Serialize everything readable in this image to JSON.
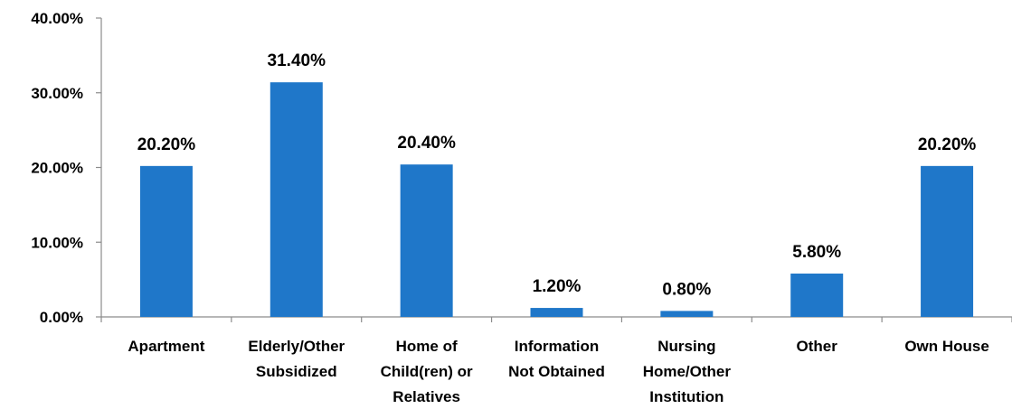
{
  "chart_data": {
    "type": "bar",
    "categories": [
      [
        "Apartment"
      ],
      [
        "Elderly/Other",
        "Subsidized"
      ],
      [
        "Home of",
        "Child(ren) or",
        "Relatives"
      ],
      [
        "Information",
        "Not Obtained"
      ],
      [
        "Nursing",
        "Home/Other",
        "Institution"
      ],
      [
        "Other"
      ],
      [
        "Own House"
      ]
    ],
    "values": [
      20.2,
      31.4,
      20.4,
      1.2,
      0.8,
      5.8,
      20.2
    ],
    "data_labels": [
      "20.20%",
      "31.40%",
      "20.40%",
      "1.20%",
      "0.80%",
      "5.80%",
      "20.20%"
    ],
    "yticks": [
      0,
      10,
      20,
      30,
      40
    ],
    "ytick_labels": [
      "0.00%",
      "10.00%",
      "20.00%",
      "30.00%",
      "40.00%"
    ],
    "ylim": [
      0,
      40
    ],
    "title": "",
    "xlabel": "",
    "ylabel": "",
    "grid": false,
    "legend": "none",
    "bar_color": "#1F77C9"
  }
}
